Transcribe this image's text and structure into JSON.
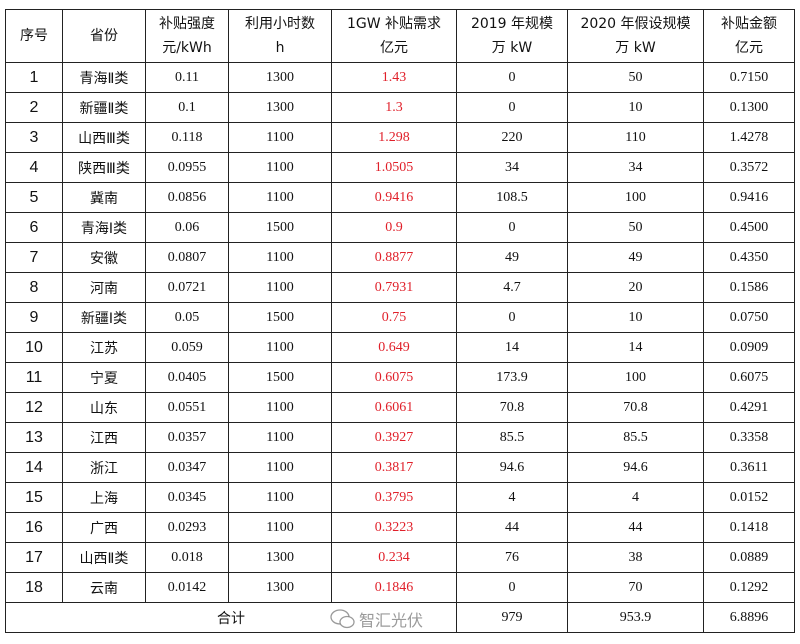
{
  "headers": [
    {
      "line1": "序号",
      "line2": ""
    },
    {
      "line1": "省份",
      "line2": ""
    },
    {
      "line1": "补贴强度",
      "line2": "元/kWh"
    },
    {
      "line1": "利用小时数",
      "line2": "h"
    },
    {
      "line1": "1GW 补贴需求",
      "line2": "亿元"
    },
    {
      "line1": "2019 年规模",
      "line2": "万 kW"
    },
    {
      "line1": "2020 年假设规模",
      "line2": "万 kW"
    },
    {
      "line1": "补贴金额",
      "line2": "亿元"
    }
  ],
  "rows": [
    [
      "1",
      "青海Ⅱ类",
      "0.11",
      "1300",
      "1.43",
      "0",
      "50",
      "0.7150"
    ],
    [
      "2",
      "新疆Ⅱ类",
      "0.1",
      "1300",
      "1.3",
      "0",
      "10",
      "0.1300"
    ],
    [
      "3",
      "山西Ⅲ类",
      "0.118",
      "1100",
      "1.298",
      "220",
      "110",
      "1.4278"
    ],
    [
      "4",
      "陕西Ⅲ类",
      "0.0955",
      "1100",
      "1.0505",
      "34",
      "34",
      "0.3572"
    ],
    [
      "5",
      "冀南",
      "0.0856",
      "1100",
      "0.9416",
      "108.5",
      "100",
      "0.9416"
    ],
    [
      "6",
      "青海Ⅰ类",
      "0.06",
      "1500",
      "0.9",
      "0",
      "50",
      "0.4500"
    ],
    [
      "7",
      "安徽",
      "0.0807",
      "1100",
      "0.8877",
      "49",
      "49",
      "0.4350"
    ],
    [
      "8",
      "河南",
      "0.0721",
      "1100",
      "0.7931",
      "4.7",
      "20",
      "0.1586"
    ],
    [
      "9",
      "新疆Ⅰ类",
      "0.05",
      "1500",
      "0.75",
      "0",
      "10",
      "0.0750"
    ],
    [
      "10",
      "江苏",
      "0.059",
      "1100",
      "0.649",
      "14",
      "14",
      "0.0909"
    ],
    [
      "11",
      "宁夏",
      "0.0405",
      "1500",
      "0.6075",
      "173.9",
      "100",
      "0.6075"
    ],
    [
      "12",
      "山东",
      "0.0551",
      "1100",
      "0.6061",
      "70.8",
      "70.8",
      "0.4291"
    ],
    [
      "13",
      "江西",
      "0.0357",
      "1100",
      "0.3927",
      "85.5",
      "85.5",
      "0.3358"
    ],
    [
      "14",
      "浙江",
      "0.0347",
      "1100",
      "0.3817",
      "94.6",
      "94.6",
      "0.3611"
    ],
    [
      "15",
      "上海",
      "0.0345",
      "1100",
      "0.3795",
      "4",
      "4",
      "0.0152"
    ],
    [
      "16",
      "广西",
      "0.0293",
      "1100",
      "0.3223",
      "44",
      "44",
      "0.1418"
    ],
    [
      "17",
      "山西Ⅱ类",
      "0.018",
      "1300",
      "0.234",
      "76",
      "38",
      "0.0889"
    ],
    [
      "18",
      "云南",
      "0.0142",
      "1300",
      "0.1846",
      "0",
      "70",
      "0.1292"
    ]
  ],
  "total": {
    "label": "合计",
    "scale_2019": "979",
    "scale_2020": "953.9",
    "subsidy": "6.8896"
  },
  "highlight_color": "#e0202a",
  "watermark": {
    "icon": "wechat-icon",
    "text": "智汇光伏"
  }
}
